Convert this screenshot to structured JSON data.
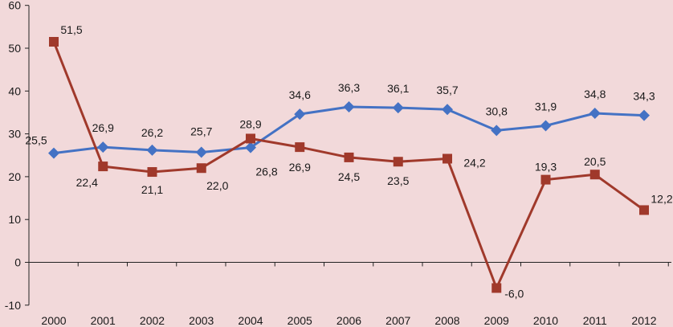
{
  "chart_data": {
    "type": "line",
    "categories": [
      "2000",
      "2001",
      "2002",
      "2003",
      "2004",
      "2005",
      "2006",
      "2007",
      "2008",
      "2009",
      "2010",
      "2011",
      "2012"
    ],
    "ylim": [
      -10,
      60
    ],
    "yticks": [
      -10,
      0,
      10,
      20,
      30,
      40,
      50,
      60
    ],
    "grid": false,
    "background": "#f2d9da",
    "series": [
      {
        "color": "#4472c4",
        "marker": "diamond",
        "values": [
          25.5,
          26.9,
          26.2,
          25.7,
          26.8,
          34.6,
          36.3,
          36.1,
          35.7,
          30.8,
          31.9,
          34.8,
          34.3
        ],
        "labels": [
          "25,5",
          "26,9",
          "26,2",
          "25,7",
          "26,8",
          "34,6",
          "36,3",
          "36,1",
          "35,7",
          "30,8",
          "31,9",
          "34,8",
          "34,3"
        ]
      },
      {
        "color": "#a0392b",
        "marker": "square",
        "values": [
          51.5,
          22.4,
          21.1,
          22.0,
          28.9,
          26.9,
          24.5,
          23.5,
          24.2,
          -6.0,
          19.3,
          20.5,
          12.2
        ],
        "labels": [
          "51,5",
          "22,4",
          "21,1",
          "22,0",
          "28,9",
          "26,9",
          "24,5",
          "23,5",
          "24,2",
          "-6,0",
          "19,3",
          "20,5",
          "12,2"
        ]
      }
    ]
  }
}
